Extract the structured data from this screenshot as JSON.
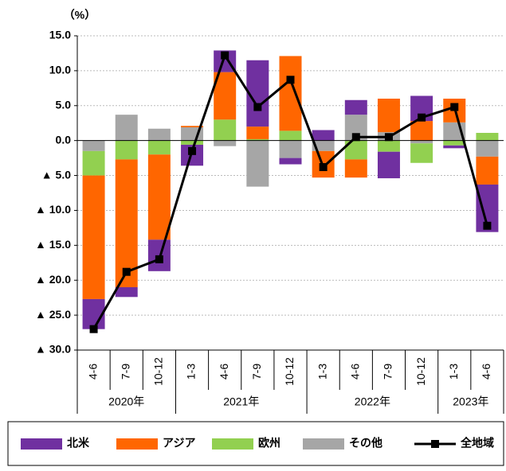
{
  "chart_data": {
    "type": "stacked_bar_line",
    "y_label": "（%）",
    "categories": [
      "4-6",
      "7-9",
      "10-12",
      "1-3",
      "4-6",
      "7-9",
      "10-12",
      "1-3",
      "4-6",
      "7-9",
      "10-12",
      "1-3",
      "4-6"
    ],
    "category_groups": [
      "2020年",
      "2020年",
      "2020年",
      "2021年",
      "2021年",
      "2021年",
      "2021年",
      "2022年",
      "2022年",
      "2022年",
      "2022年",
      "2023年",
      "2023年"
    ],
    "series": [
      {
        "name": "北米",
        "color": "#7030a0",
        "kind": "bar",
        "values": [
          -4.3,
          -1.4,
          -4.5,
          -3.0,
          3.1,
          9.5,
          -0.9,
          1.5,
          2.1,
          -3.8,
          3.6,
          -0.4,
          -6.8
        ]
      },
      {
        "name": "アジア",
        "color": "#ff6600",
        "kind": "bar",
        "values": [
          -17.7,
          -18.3,
          -12.2,
          0.2,
          6.8,
          1.8,
          10.7,
          -3.8,
          -2.6,
          4.8,
          2.8,
          3.4,
          -4.0
        ]
      },
      {
        "name": "欧州",
        "color": "#92d050",
        "kind": "bar",
        "values": [
          -3.5,
          -2.7,
          -2.0,
          -0.6,
          3.0,
          0.2,
          1.4,
          0,
          -2.7,
          -1.6,
          -2.8,
          -0.7,
          1.1
        ]
      },
      {
        "name": "その他",
        "color": "#a6a6a6",
        "kind": "bar",
        "values": [
          -1.5,
          3.7,
          1.7,
          1.9,
          -0.8,
          -6.6,
          -2.5,
          -1.5,
          3.7,
          1.2,
          -0.4,
          2.6,
          -2.3
        ]
      },
      {
        "name": "全地域",
        "color": "#000000",
        "kind": "line",
        "values": [
          -27.0,
          -18.8,
          -17.0,
          -1.5,
          12.2,
          4.8,
          8.7,
          -3.8,
          0.5,
          0.5,
          3.3,
          4.8,
          -12.2
        ]
      }
    ],
    "ylim": [
      -30,
      15
    ],
    "yticks": [
      {
        "value": 15,
        "label": "15.0"
      },
      {
        "value": 10,
        "label": "10.0"
      },
      {
        "value": 5,
        "label": "5.0"
      },
      {
        "value": 0,
        "label": "0.0"
      },
      {
        "value": -5,
        "label": "▲ 5.0"
      },
      {
        "value": -10,
        "label": "▲ 10.0"
      },
      {
        "value": -15,
        "label": "▲ 15.0"
      },
      {
        "value": -20,
        "label": "▲ 20.0"
      },
      {
        "value": -25,
        "label": "▲ 25.0"
      },
      {
        "value": -30,
        "label": "▲ 30.0"
      }
    ],
    "grid": true
  }
}
